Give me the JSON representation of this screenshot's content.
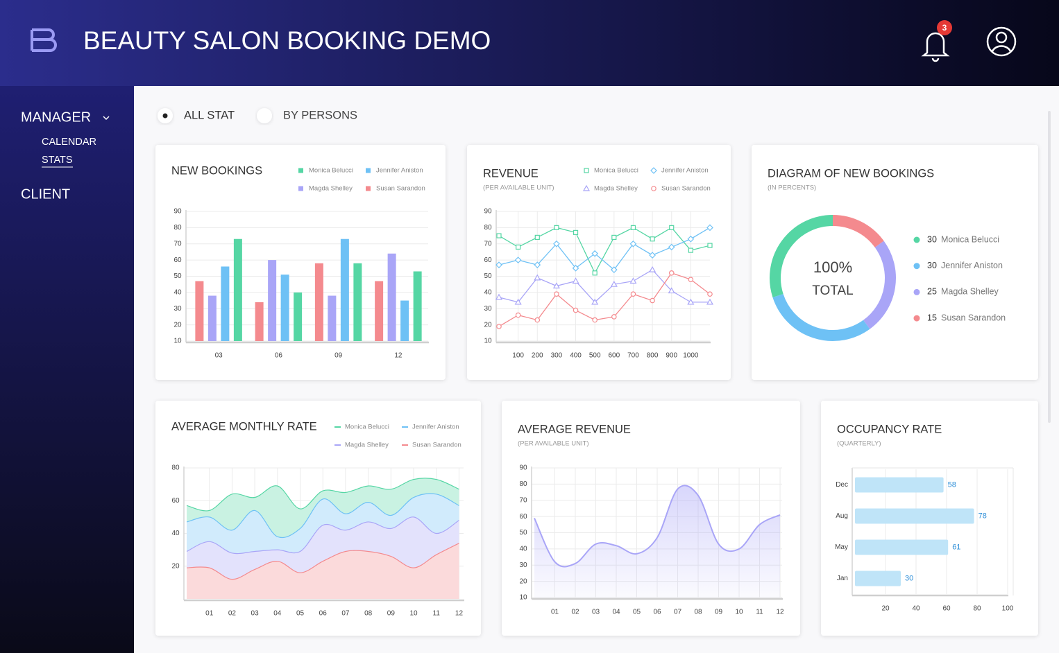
{
  "header": {
    "title": "BEAUTY SALON BOOKING DEMO",
    "notifications": 3
  },
  "sidebar": {
    "sections": [
      {
        "label": "MANAGER",
        "items": [
          "CALENDAR",
          "STATS"
        ]
      },
      {
        "label": "CLIENT"
      }
    ]
  },
  "tabs": [
    "ALL STAT",
    "BY PERSONS"
  ],
  "chart_data": [
    {
      "type": "bar",
      "title": "NEW BOOKINGS",
      "categories": [
        "03",
        "06",
        "09",
        "12"
      ],
      "series": [
        {
          "name": "Monica Belucci",
          "color": "#55d6a4",
          "values": [
            73,
            40,
            58,
            53
          ]
        },
        {
          "name": "Jennifer Aniston",
          "color": "#6ec1f5",
          "values": [
            56,
            51,
            73,
            35
          ]
        },
        {
          "name": "Magda Shelley",
          "color": "#a9a5f7",
          "values": [
            38,
            60,
            38,
            64
          ]
        },
        {
          "name": "Susan Sarandon",
          "color": "#f48a8e",
          "values": [
            47,
            34,
            58,
            47
          ]
        }
      ],
      "ylim": [
        10,
        90
      ],
      "yticks": [
        10,
        20,
        30,
        40,
        50,
        60,
        70,
        80,
        90
      ],
      "grid": true
    },
    {
      "type": "line",
      "title": "REVENUE",
      "subtitle": "(PER AVAILABLE UNIT)",
      "x": [
        0,
        100,
        200,
        300,
        400,
        500,
        600,
        700,
        800,
        900,
        1000,
        1100
      ],
      "series": [
        {
          "name": "Monica Belucci",
          "color": "#55d6a4",
          "marker": "square",
          "values": [
            75,
            68,
            74,
            80,
            77,
            52,
            74,
            80,
            73,
            80,
            66,
            69
          ]
        },
        {
          "name": "Jennifer Aniston",
          "color": "#6ec1f5",
          "marker": "diamond",
          "values": [
            57,
            60,
            57,
            70,
            55,
            64,
            54,
            70,
            63,
            68,
            73,
            80
          ]
        },
        {
          "name": "Magda Shelley",
          "color": "#a9a5f7",
          "marker": "triangle",
          "values": [
            37,
            34,
            49,
            44,
            47,
            34,
            45,
            47,
            54,
            41,
            34,
            34
          ]
        },
        {
          "name": "Susan Sarandon",
          "color": "#f48a8e",
          "marker": "circle",
          "values": [
            19,
            26,
            23,
            39,
            29,
            23,
            25,
            39,
            35,
            52,
            48,
            39
          ]
        }
      ],
      "xlim": [
        0,
        1100
      ],
      "xticks": [
        100,
        200,
        300,
        400,
        500,
        600,
        700,
        800,
        900,
        1000
      ],
      "ylim": [
        10,
        90
      ],
      "yticks": [
        10,
        20,
        30,
        40,
        50,
        60,
        70,
        80,
        90
      ],
      "grid": true
    },
    {
      "type": "pie",
      "title": "DIAGRAM OF NEW BOOKINGS",
      "subtitle": "(IN PERCENTS)",
      "center_label": "100%",
      "center_sublabel": "TOTAL",
      "categories": [
        "Monica Belucci",
        "Jennifer Aniston",
        "Magda Shelley",
        "Susan Sarandon"
      ],
      "values": [
        30,
        30,
        25,
        15
      ],
      "colors": [
        "#55d6a4",
        "#6ec1f5",
        "#a9a5f7",
        "#f48a8e"
      ]
    },
    {
      "type": "area",
      "title": "AVERAGE MONTHLY RATE",
      "x": [
        0,
        1,
        2,
        3,
        4,
        5,
        6,
        7,
        8,
        9,
        10,
        11,
        12
      ],
      "series": [
        {
          "name": "Monica Belucci",
          "color": "#55d6a4",
          "values": [
            57,
            54,
            64,
            62,
            69,
            55,
            66,
            65,
            69,
            67,
            73,
            73,
            67
          ]
        },
        {
          "name": "Jennifer Aniston",
          "color": "#6ec1f5",
          "values": [
            47,
            50,
            42,
            54,
            38,
            43,
            61,
            52,
            59,
            51,
            62,
            64,
            57
          ]
        },
        {
          "name": "Magda Shelley",
          "color": "#a9a5f7",
          "values": [
            29,
            35,
            28,
            29,
            30,
            29,
            45,
            42,
            47,
            43,
            50,
            40,
            48
          ]
        },
        {
          "name": "Susan Sarandon",
          "color": "#f48a8e",
          "values": [
            19,
            19,
            12,
            18,
            23,
            16,
            23,
            29,
            29,
            26,
            19,
            27,
            34
          ]
        }
      ],
      "xlim": [
        0,
        12.2
      ],
      "xticks": [
        {
          "value": 1,
          "label": "01"
        },
        {
          "value": 2,
          "label": "02"
        },
        {
          "value": 3,
          "label": "03"
        },
        {
          "value": 4,
          "label": "04"
        },
        {
          "value": 5,
          "label": "05"
        },
        {
          "value": 6,
          "label": "06"
        },
        {
          "value": 7,
          "label": "07"
        },
        {
          "value": 8,
          "label": "08"
        },
        {
          "value": 9,
          "label": "09"
        },
        {
          "value": 10,
          "label": "10"
        },
        {
          "value": 11,
          "label": "11"
        },
        {
          "value": 12,
          "label": "12"
        }
      ],
      "ylim": [
        0,
        80
      ],
      "yticks": [
        20,
        40,
        60,
        80
      ],
      "grid": true
    },
    {
      "type": "area",
      "title": "AVERAGE REVENUE",
      "subtitle": "(PER AVAILABLE UNIT)",
      "x": [
        0,
        1,
        2,
        3,
        4,
        5,
        6,
        7,
        8,
        9,
        10,
        11,
        12
      ],
      "values": [
        59,
        32,
        31,
        43,
        42,
        37,
        47,
        77,
        73,
        43,
        40,
        55,
        61
      ],
      "color": "#a9a5f7",
      "xlim": [
        0,
        12.1
      ],
      "xticks": [
        {
          "value": 1,
          "label": "01"
        },
        {
          "value": 2,
          "label": "02"
        },
        {
          "value": 3,
          "label": "03"
        },
        {
          "value": 4,
          "label": "04"
        },
        {
          "value": 5,
          "label": "05"
        },
        {
          "value": 6,
          "label": "06"
        },
        {
          "value": 7,
          "label": "07"
        },
        {
          "value": 8,
          "label": "08"
        },
        {
          "value": 9,
          "label": "09"
        },
        {
          "value": 10,
          "label": "10"
        },
        {
          "value": 11,
          "label": "11"
        },
        {
          "value": 12,
          "label": "12"
        }
      ],
      "ylim": [
        10,
        90
      ],
      "yticks": [
        10,
        20,
        30,
        40,
        50,
        60,
        70,
        80,
        90
      ],
      "grid": true
    },
    {
      "type": "barh",
      "title": "OCCUPANCY RATE",
      "subtitle": "(QUARTERLY)",
      "categories": [
        "Dec",
        "Aug",
        "May",
        "Jan"
      ],
      "values": [
        58,
        78,
        61,
        30
      ],
      "color": "#bfe4f8",
      "label_color": "#2f8fd8",
      "xlim": [
        0,
        100
      ],
      "xticks": [
        20,
        40,
        60,
        80,
        100
      ],
      "grid": true
    }
  ]
}
